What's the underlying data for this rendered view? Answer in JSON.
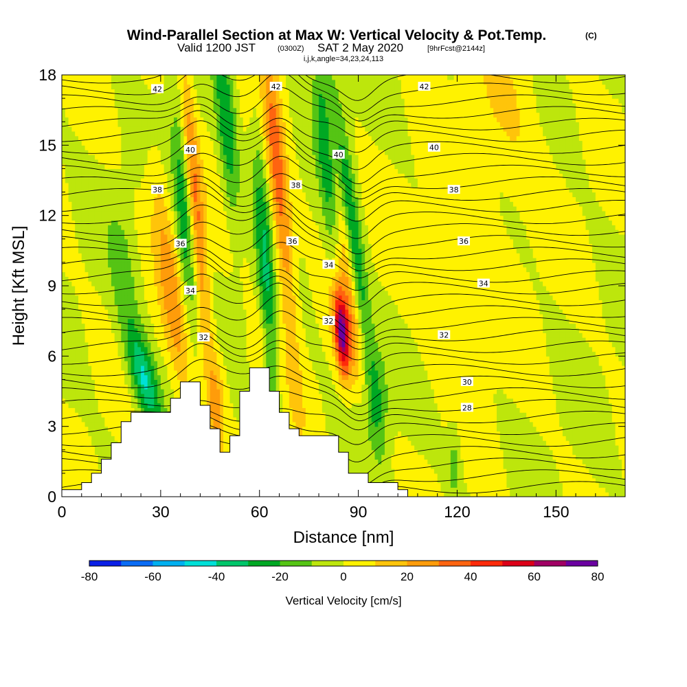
{
  "title": {
    "line1": "Wind-Parallel Section at Max W: Vertical Velocity & Pot.Temp.",
    "copyright": "(C)",
    "line2_a": "Valid 1200 JST",
    "line2_b": "(0300Z)",
    "line2_c": "SAT 2 May 2020",
    "line2_d": "[9hrFcst@2144z]",
    "line3": "i,j,k,angle=34,23,24,113"
  },
  "chart_data": {
    "type": "contour",
    "xlabel": "Distance [nm]",
    "ylabel": "Height [Kft MSL]",
    "xlim": [
      0,
      171
    ],
    "ylim": [
      0,
      18
    ],
    "x_ticks": [
      "0",
      "30",
      "60",
      "90",
      "120",
      "150"
    ],
    "y_ticks": [
      "0",
      "3",
      "6",
      "9",
      "12",
      "15",
      "18"
    ],
    "colorbar": {
      "label": "Vertical Velocity [cm/s]",
      "ticks": [
        "-80",
        "-60",
        "-40",
        "-20",
        "0",
        "20",
        "40",
        "60",
        "80"
      ],
      "levels": [
        -80,
        -70,
        -60,
        -50,
        -40,
        -30,
        -20,
        -10,
        0,
        10,
        20,
        30,
        40,
        50,
        60,
        70,
        80
      ],
      "colors": [
        "#0a1fe6",
        "#0a6cf5",
        "#00b0f0",
        "#00e0d8",
        "#00c66a",
        "#00a823",
        "#55c414",
        "#bde60c",
        "#fff200",
        "#ffc40a",
        "#ff9c0a",
        "#ff6410",
        "#ff2a0a",
        "#dc0018",
        "#a00064",
        "#6a00a0"
      ]
    },
    "theta_contour_labels": [
      {
        "text": "42",
        "x": 29,
        "y": 17.4
      },
      {
        "text": "42",
        "x": 65,
        "y": 17.5
      },
      {
        "text": "42",
        "x": 110,
        "y": 17.5
      },
      {
        "text": "40",
        "x": 39,
        "y": 14.8
      },
      {
        "text": "40",
        "x": 84,
        "y": 14.6
      },
      {
        "text": "40",
        "x": 113,
        "y": 14.9
      },
      {
        "text": "38",
        "x": 29,
        "y": 13.1
      },
      {
        "text": "38",
        "x": 71,
        "y": 13.3
      },
      {
        "text": "38",
        "x": 119,
        "y": 13.1
      },
      {
        "text": "36",
        "x": 36,
        "y": 10.8
      },
      {
        "text": "36",
        "x": 70,
        "y": 10.9
      },
      {
        "text": "36",
        "x": 122,
        "y": 10.9
      },
      {
        "text": "34",
        "x": 39,
        "y": 8.8
      },
      {
        "text": "34",
        "x": 81,
        "y": 9.9
      },
      {
        "text": "34",
        "x": 128,
        "y": 9.1
      },
      {
        "text": "32",
        "x": 43,
        "y": 6.8
      },
      {
        "text": "32",
        "x": 81,
        "y": 7.5
      },
      {
        "text": "32",
        "x": 116,
        "y": 6.9
      },
      {
        "text": "30",
        "x": 123,
        "y": 4.9
      },
      {
        "text": "28",
        "x": 123,
        "y": 3.8
      }
    ],
    "terrain": [
      [
        0,
        0.3
      ],
      [
        6,
        0.3
      ],
      [
        6,
        0.6
      ],
      [
        9,
        0.6
      ],
      [
        9,
        1.0
      ],
      [
        12,
        1.0
      ],
      [
        12,
        1.6
      ],
      [
        15,
        1.6
      ],
      [
        15,
        2.3
      ],
      [
        18,
        2.3
      ],
      [
        18,
        3.2
      ],
      [
        21,
        3.2
      ],
      [
        21,
        3.6
      ],
      [
        33,
        3.6
      ],
      [
        33,
        4.2
      ],
      [
        36,
        4.2
      ],
      [
        36,
        4.9
      ],
      [
        42,
        4.9
      ],
      [
        42,
        3.9
      ],
      [
        45,
        3.9
      ],
      [
        45,
        2.9
      ],
      [
        48,
        2.9
      ],
      [
        48,
        1.9
      ],
      [
        51,
        1.9
      ],
      [
        51,
        2.6
      ],
      [
        54,
        2.6
      ],
      [
        54,
        4.5
      ],
      [
        57,
        4.5
      ],
      [
        57,
        5.5
      ],
      [
        63,
        5.5
      ],
      [
        63,
        4.5
      ],
      [
        66,
        4.5
      ],
      [
        66,
        3.6
      ],
      [
        69,
        3.6
      ],
      [
        69,
        2.9
      ],
      [
        72,
        2.9
      ],
      [
        72,
        2.6
      ],
      [
        84,
        2.6
      ],
      [
        84,
        1.9
      ],
      [
        87,
        1.9
      ],
      [
        87,
        1.0
      ],
      [
        93,
        1.0
      ],
      [
        93,
        0.6
      ],
      [
        102,
        0.6
      ],
      [
        102,
        0.3
      ],
      [
        105,
        0.3
      ],
      [
        105,
        0
      ]
    ]
  }
}
